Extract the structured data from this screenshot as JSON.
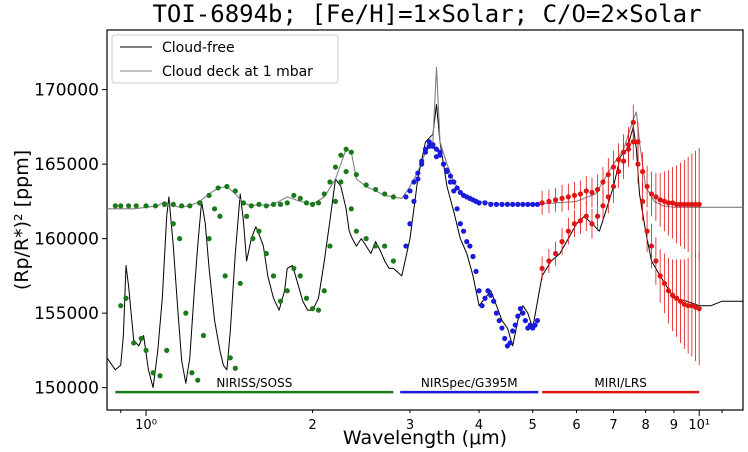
{
  "chart_data": {
    "type": "line",
    "title": "TOI-6894b; [Fe/H]=1×Solar; C/O=2×Solar",
    "xlabel": "Wavelength (μm)",
    "ylabel": "(Rp/R*)² [ppm]",
    "xscale": "log",
    "xlim": [
      0.85,
      12.0
    ],
    "ylim": [
      148500,
      174000
    ],
    "yticks": [
      150000,
      155000,
      160000,
      165000,
      170000
    ],
    "ytick_labels": [
      "150000",
      "155000",
      "160000",
      "165000",
      "170000"
    ],
    "xticks_major": [
      {
        "value": 1,
        "label": "10⁰"
      },
      {
        "value": 10,
        "label": "10¹"
      }
    ],
    "xticks_minor": [
      {
        "value": 2,
        "label": "2"
      },
      {
        "value": 3,
        "label": "3"
      },
      {
        "value": 4,
        "label": "4"
      },
      {
        "value": 5,
        "label": "5"
      },
      {
        "value": 6,
        "label": "6"
      },
      {
        "value": 7,
        "label": "7"
      },
      {
        "value": 8,
        "label": "8"
      },
      {
        "value": 9,
        "label": "9"
      }
    ],
    "legend": {
      "placement": "top-left",
      "entries": [
        {
          "label": "Cloud-free",
          "color": "#000000"
        },
        {
          "label": "Cloud deck at 1 mbar",
          "color": "#808080"
        }
      ]
    },
    "series": [
      {
        "name": "Cloud-free",
        "color": "#000000",
        "x": [
          0.85,
          0.88,
          0.9,
          0.91,
          0.92,
          0.93,
          0.95,
          0.97,
          0.99,
          1.01,
          1.03,
          1.05,
          1.07,
          1.09,
          1.1,
          1.12,
          1.14,
          1.16,
          1.18,
          1.2,
          1.22,
          1.24,
          1.26,
          1.28,
          1.3,
          1.33,
          1.36,
          1.38,
          1.4,
          1.42,
          1.45,
          1.48,
          1.5,
          1.52,
          1.55,
          1.58,
          1.6,
          1.63,
          1.66,
          1.7,
          1.74,
          1.78,
          1.8,
          1.84,
          1.88,
          1.92,
          1.96,
          2.0,
          2.05,
          2.1,
          2.15,
          2.2,
          2.25,
          2.3,
          2.33,
          2.36,
          2.4,
          2.45,
          2.5,
          2.55,
          2.6,
          2.65,
          2.7,
          2.75,
          2.8,
          2.9,
          3.0,
          3.1,
          3.2,
          3.3,
          3.35,
          3.4,
          3.5,
          3.6,
          3.7,
          3.8,
          3.9,
          4.0,
          4.1,
          4.2,
          4.3,
          4.4,
          4.5,
          4.6,
          4.7,
          4.8,
          4.9,
          5.0,
          5.2,
          5.4,
          5.6,
          5.8,
          6.0,
          6.2,
          6.4,
          6.6,
          6.8,
          7.0,
          7.2,
          7.4,
          7.6,
          7.7,
          7.8,
          8.0,
          8.2,
          8.5,
          9.0,
          9.5,
          10.0,
          10.5,
          11.0,
          12.0
        ],
        "y": [
          152000,
          151200,
          151500,
          153500,
          158200,
          156800,
          153200,
          152800,
          153500,
          151200,
          150000,
          152500,
          156000,
          161500,
          162800,
          159500,
          155500,
          151800,
          150300,
          152000,
          156000,
          159500,
          162500,
          161000,
          158000,
          154500,
          152500,
          151500,
          151200,
          153800,
          159000,
          163000,
          161200,
          158500,
          160000,
          160800,
          160300,
          159500,
          157500,
          156000,
          155200,
          156500,
          158000,
          158200,
          157000,
          155800,
          155200,
          155200,
          156000,
          158500,
          161200,
          164000,
          163500,
          162000,
          160500,
          160000,
          159500,
          160000,
          159500,
          159000,
          159800,
          159200,
          158500,
          158000,
          158000,
          157500,
          160000,
          164000,
          166500,
          167000,
          169000,
          166500,
          163500,
          161800,
          160000,
          159000,
          157500,
          155500,
          156000,
          156500,
          155500,
          154500,
          154000,
          152800,
          154500,
          155500,
          155000,
          154000,
          157500,
          158500,
          159000,
          160000,
          161000,
          161500,
          161000,
          160500,
          162000,
          163500,
          165500,
          166000,
          167500,
          166000,
          163000,
          160500,
          158500,
          157500,
          156000,
          155800,
          155500,
          155500,
          155800,
          155800
        ]
      },
      {
        "name": "Cloud deck at 1 mbar",
        "color": "#808080",
        "x": [
          0.85,
          0.9,
          0.95,
          1.0,
          1.05,
          1.08,
          1.1,
          1.15,
          1.2,
          1.25,
          1.3,
          1.35,
          1.4,
          1.45,
          1.5,
          1.55,
          1.6,
          1.65,
          1.7,
          1.8,
          1.9,
          2.0,
          2.1,
          2.2,
          2.3,
          2.35,
          2.4,
          2.5,
          2.6,
          2.7,
          2.8,
          2.9,
          3.0,
          3.1,
          3.2,
          3.3,
          3.35,
          3.4,
          3.5,
          3.6,
          3.7,
          3.8,
          4.0,
          4.2,
          4.4,
          4.6,
          4.8,
          5.0,
          5.5,
          6.0,
          6.5,
          7.0,
          7.3,
          7.6,
          7.7,
          7.8,
          8.0,
          8.3,
          8.6,
          9.0,
          10.0,
          11.0,
          12.0
        ],
        "y": [
          162000,
          162000,
          162000,
          162100,
          162200,
          162500,
          162300,
          162100,
          162200,
          162500,
          163000,
          163400,
          163500,
          163000,
          162400,
          162200,
          162300,
          162200,
          162300,
          162800,
          162500,
          162300,
          162800,
          164000,
          166000,
          165800,
          164000,
          163500,
          163200,
          162900,
          162800,
          162700,
          163500,
          164500,
          165800,
          166500,
          171500,
          166500,
          165000,
          163800,
          163200,
          162800,
          162500,
          162400,
          162300,
          162300,
          162300,
          162300,
          162400,
          162500,
          163000,
          165000,
          166000,
          168000,
          168500,
          166500,
          163500,
          162500,
          162200,
          162100,
          162100,
          162100,
          162100
        ]
      },
      {
        "name": "NIRISS/SOSS",
        "color": "#1a7a1a",
        "errorbars": false,
        "x": [
          0.9,
          0.92,
          0.95,
          0.98,
          1.0,
          1.03,
          1.06,
          1.09,
          1.12,
          1.15,
          1.18,
          1.21,
          1.24,
          1.27,
          1.3,
          1.33,
          1.36,
          1.39,
          1.42,
          1.45,
          1.48,
          1.52,
          1.56,
          1.6,
          1.65,
          1.7,
          1.75,
          1.8,
          1.85,
          1.9,
          1.95,
          2.0,
          2.05,
          2.1,
          2.15,
          2.2,
          2.25,
          2.3,
          2.35,
          2.4,
          2.5,
          2.6,
          2.7,
          2.8
        ],
        "y": [
          155500,
          156000,
          153000,
          153300,
          152500,
          151000,
          150800,
          152500,
          161000,
          160000,
          155000,
          151000,
          150500,
          153500,
          160000,
          162000,
          161500,
          157500,
          152000,
          151300,
          157000,
          161500,
          160000,
          160500,
          159000,
          157500,
          155800,
          156500,
          158000,
          157500,
          156000,
          155300,
          155200,
          156500,
          159500,
          162500,
          163800,
          164500,
          162000,
          160500,
          160000,
          159500,
          159500,
          158500
        ]
      },
      {
        "name": "NIRISS/SOSS cloudy",
        "color": "#1a7a1a",
        "errorbars": false,
        "x": [
          0.88,
          0.9,
          0.93,
          0.96,
          1.0,
          1.04,
          1.08,
          1.12,
          1.16,
          1.2,
          1.25,
          1.3,
          1.35,
          1.4,
          1.45,
          1.5,
          1.55,
          1.6,
          1.65,
          1.7,
          1.75,
          1.8,
          1.85,
          1.9,
          1.95,
          2.0,
          2.05,
          2.1,
          2.15,
          2.2,
          2.25,
          2.3,
          2.35,
          2.4,
          2.5,
          2.6,
          2.7,
          2.8
        ],
        "y": [
          162200,
          162200,
          162200,
          162200,
          162200,
          162200,
          162300,
          162300,
          162200,
          162200,
          162400,
          162900,
          163400,
          163500,
          163200,
          162400,
          162200,
          162300,
          162200,
          162300,
          162300,
          162400,
          162900,
          162700,
          162400,
          162300,
          162400,
          163000,
          163800,
          164800,
          165600,
          166000,
          165800,
          164300,
          163600,
          163300,
          163000,
          162800
        ]
      },
      {
        "name": "NIRSpec/G395M",
        "color": "#1a1adc",
        "errorbars": false,
        "x": [
          2.95,
          3.0,
          3.05,
          3.1,
          3.15,
          3.2,
          3.25,
          3.3,
          3.35,
          3.4,
          3.45,
          3.5,
          3.55,
          3.6,
          3.65,
          3.7,
          3.75,
          3.8,
          3.85,
          3.9,
          3.95,
          4.0,
          4.05,
          4.1,
          4.15,
          4.2,
          4.25,
          4.3,
          4.35,
          4.4,
          4.45,
          4.5,
          4.55,
          4.6,
          4.65,
          4.7,
          4.75,
          4.8,
          4.85,
          4.9,
          4.95,
          5.0,
          5.05,
          5.1
        ],
        "y": [
          159500,
          161000,
          162500,
          164000,
          165000,
          166000,
          166500,
          166200,
          165500,
          165800,
          165000,
          164500,
          163800,
          163200,
          162000,
          161000,
          160500,
          159800,
          159500,
          158800,
          157800,
          156500,
          155500,
          156000,
          156500,
          156200,
          155800,
          155000,
          154500,
          154000,
          153300,
          152800,
          153000,
          153800,
          154200,
          154800,
          155300,
          155000,
          154500,
          154000,
          154200,
          154000,
          154200,
          154500
        ]
      },
      {
        "name": "NIRSpec/G395M cloudy",
        "color": "#1a1adc",
        "errorbars": false,
        "x": [
          2.95,
          3.0,
          3.05,
          3.1,
          3.15,
          3.2,
          3.25,
          3.3,
          3.35,
          3.4,
          3.45,
          3.5,
          3.55,
          3.6,
          3.65,
          3.7,
          3.75,
          3.8,
          3.85,
          3.9,
          3.95,
          4.0,
          4.1,
          4.2,
          4.3,
          4.4,
          4.5,
          4.6,
          4.7,
          4.8,
          4.9,
          5.0,
          5.1
        ],
        "y": [
          162800,
          163200,
          163800,
          164400,
          165200,
          165800,
          166200,
          166300,
          166000,
          165600,
          165000,
          164600,
          164200,
          163800,
          163400,
          163100,
          162900,
          162800,
          162700,
          162600,
          162500,
          162400,
          162400,
          162300,
          162300,
          162300,
          162300,
          162300,
          162300,
          162300,
          162300,
          162300,
          162300
        ]
      },
      {
        "name": "MIRI/LRS",
        "color": "#e01414",
        "errorbars": true,
        "x": [
          5.2,
          5.35,
          5.5,
          5.65,
          5.8,
          5.95,
          6.1,
          6.25,
          6.4,
          6.55,
          6.7,
          6.85,
          7.0,
          7.15,
          7.3,
          7.45,
          7.6,
          7.75,
          7.9,
          8.05,
          8.2,
          8.35,
          8.5,
          8.65,
          8.8,
          8.95,
          9.1,
          9.25,
          9.4,
          9.55,
          9.7,
          9.85,
          10.0
        ],
        "y": [
          158000,
          158500,
          159000,
          159800,
          160500,
          161000,
          161200,
          161500,
          161000,
          161500,
          162200,
          162800,
          163500,
          164500,
          165200,
          166000,
          166500,
          165000,
          162500,
          160500,
          159500,
          158500,
          157500,
          157000,
          156500,
          156200,
          156000,
          155800,
          155600,
          155500,
          155500,
          155400,
          155300
        ],
        "err": [
          800,
          800,
          800,
          900,
          900,
          900,
          900,
          1000,
          1000,
          1000,
          1000,
          1100,
          1100,
          1100,
          1200,
          1200,
          1200,
          1300,
          1300,
          1400,
          1500,
          1600,
          1800,
          2000,
          2200,
          2400,
          2600,
          2800,
          3000,
          3200,
          3400,
          3600,
          3800
        ]
      },
      {
        "name": "MIRI/LRS cloudy",
        "color": "#e01414",
        "errorbars": true,
        "x": [
          5.2,
          5.35,
          5.5,
          5.65,
          5.8,
          5.95,
          6.1,
          6.25,
          6.4,
          6.55,
          6.7,
          6.85,
          7.0,
          7.15,
          7.3,
          7.45,
          7.6,
          7.75,
          7.9,
          8.05,
          8.2,
          8.35,
          8.5,
          8.65,
          8.8,
          8.95,
          9.1,
          9.25,
          9.4,
          9.55,
          9.7,
          9.85,
          10.0
        ],
        "y": [
          162400,
          162500,
          162600,
          162700,
          162800,
          162900,
          163000,
          163200,
          163100,
          163300,
          163800,
          164300,
          164800,
          165300,
          165800,
          166300,
          167800,
          166500,
          164500,
          163500,
          163000,
          162800,
          162600,
          162500,
          162400,
          162400,
          162300,
          162300,
          162300,
          162300,
          162300,
          162300,
          162300
        ],
        "err": [
          800,
          800,
          800,
          900,
          900,
          900,
          900,
          1000,
          1000,
          1000,
          1000,
          1100,
          1100,
          1100,
          1200,
          1200,
          1200,
          1300,
          1300,
          1400,
          1500,
          1600,
          1800,
          2000,
          2200,
          2400,
          2600,
          2800,
          3000,
          3200,
          3400,
          3600,
          3800
        ]
      }
    ],
    "instruments": [
      {
        "label": "NIRISS/SOSS",
        "x_start": 0.88,
        "x_end": 2.8,
        "y": 149700,
        "color": "#1a7a1a"
      },
      {
        "label": "NIRSpec/G395M",
        "x_start": 2.88,
        "x_end": 5.12,
        "y": 149700,
        "color": "#1a1adc"
      },
      {
        "label": "MIRI/LRS",
        "x_start": 5.2,
        "x_end": 10.0,
        "y": 149700,
        "color": "#e01414"
      }
    ]
  }
}
